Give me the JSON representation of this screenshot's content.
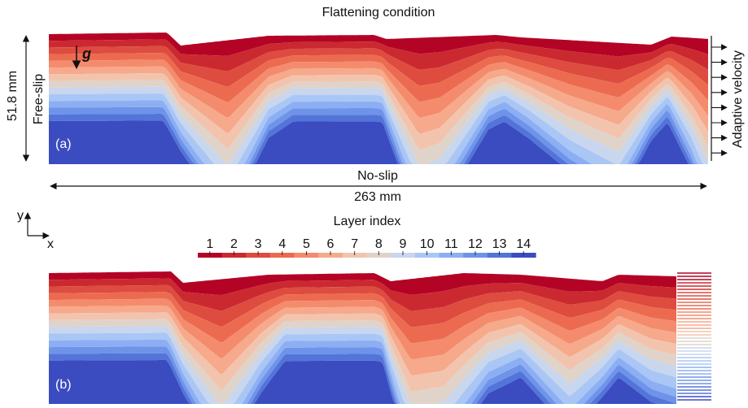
{
  "title": "Flattening condition",
  "panel_a": {
    "label": "(a)",
    "height_label": "51.8 mm",
    "left_boundary": "Free-slip",
    "right_boundary": "Adaptive velocity",
    "bottom_boundary": "No-slip",
    "width_label": "263 mm",
    "gravity_label": "g"
  },
  "axes": {
    "y": "y",
    "x": "x"
  },
  "colorbar": {
    "title": "Layer index",
    "ticks": [
      "1",
      "2",
      "3",
      "4",
      "5",
      "6",
      "7",
      "8",
      "9",
      "10",
      "11",
      "12",
      "13",
      "14"
    ],
    "colors": [
      "#b40426",
      "#cb2930",
      "#dd4c3f",
      "#ec6b50",
      "#f48b6d",
      "#f6a98b",
      "#f2c4ae",
      "#e0d3ca",
      "#c8d6ee",
      "#aac6f5",
      "#8caff4",
      "#6f93e9",
      "#5375d9",
      "#3b4cc0"
    ]
  },
  "panel_b": {
    "label": "(b)"
  }
}
